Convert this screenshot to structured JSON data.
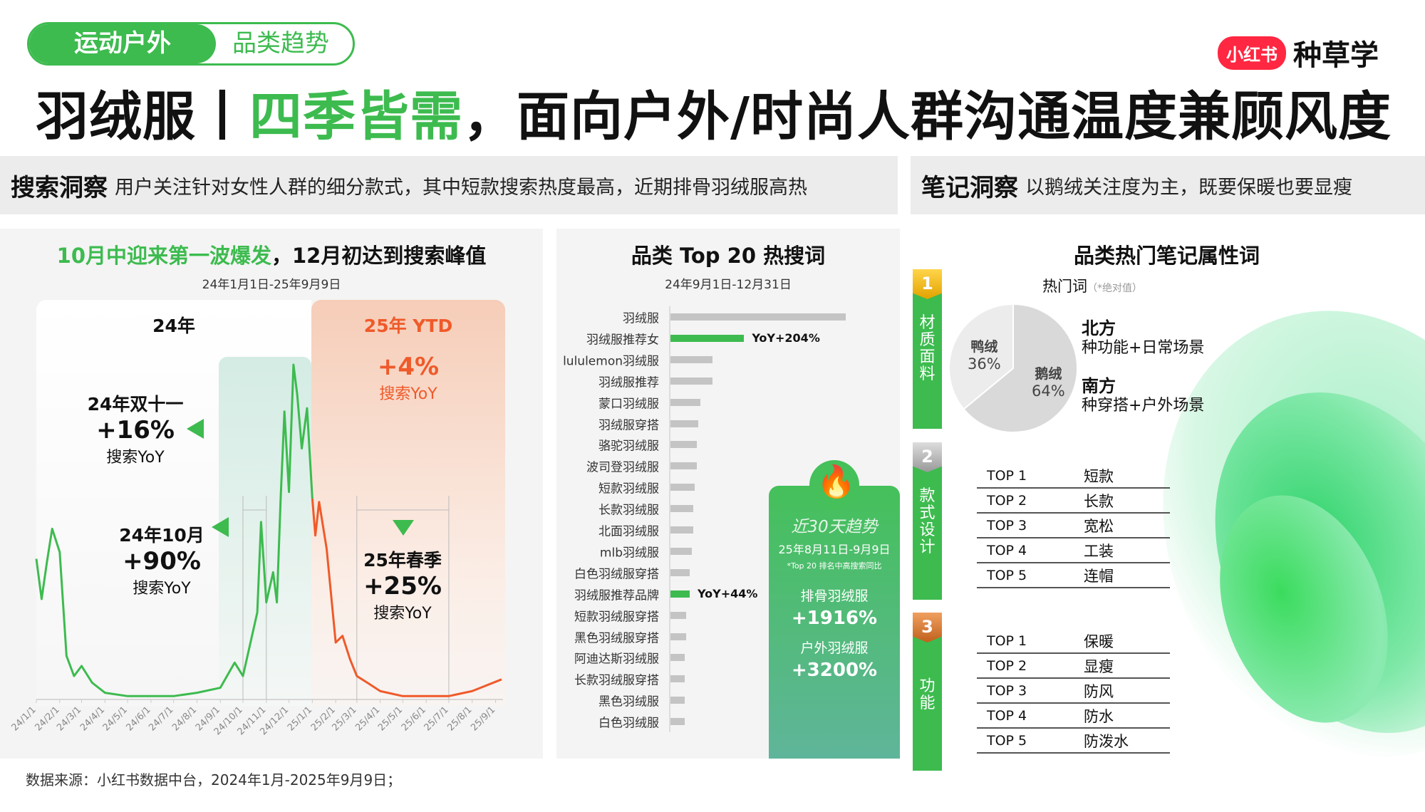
{
  "header": {
    "tag_primary": "运动户外",
    "tag_secondary": "品类趋势",
    "logo_badge": "小红书",
    "logo_text": "种草学",
    "title_black1": "羽绒服丨",
    "title_green": "四季皆需",
    "title_black2": "，面向户外/时尚人群沟通温度兼顾风度"
  },
  "search_insight": {
    "label": "搜索洞察",
    "text": "用户关注针对女性人群的细分款式，其中短款搜索热度最高，近期排骨羽绒服高热"
  },
  "note_insight": {
    "label": "笔记洞察",
    "text": "以鹅绒关注度为主，既要保暖也要显瘦"
  },
  "colors": {
    "green": "#3dbb4f",
    "orange": "#ef5a2a",
    "gray_bar": "#c4c4c4"
  },
  "chart_data": [
    {
      "type": "line",
      "title_green": "10月中迎来第一波爆发",
      "title_black": "，12月初达到搜索峰值",
      "subtitle": "24年1月1日-25年9月9日",
      "x_ticks": [
        "24/1/1",
        "24/2/1",
        "24/3/1",
        "24/4/1",
        "24/5/1",
        "24/6/1",
        "24/7/1",
        "24/8/1",
        "24/9/1",
        "24/10/1",
        "24/11/1",
        "24/12/1",
        "25/1/1",
        "25/2/1",
        "25/3/1",
        "25/4/1",
        "25/5/1",
        "25/6/1",
        "25/7/1",
        "25/8/1",
        "25/9/1"
      ],
      "x": [
        "2024-01-01",
        "2024-01-08",
        "2024-01-15",
        "2024-01-22",
        "2024-02-01",
        "2024-02-10",
        "2024-02-20",
        "2024-03-01",
        "2024-03-15",
        "2024-04-01",
        "2024-05-01",
        "2024-06-01",
        "2024-07-01",
        "2024-08-01",
        "2024-09-01",
        "2024-09-20",
        "2024-10-01",
        "2024-10-10",
        "2024-10-20",
        "2024-10-25",
        "2024-11-01",
        "2024-11-10",
        "2024-11-15",
        "2024-11-20",
        "2024-11-25",
        "2024-12-01",
        "2024-12-07",
        "2024-12-12",
        "2024-12-18",
        "2024-12-25",
        "2025-01-01",
        "2025-01-05",
        "2025-01-10",
        "2025-01-20",
        "2025-02-01",
        "2025-02-10",
        "2025-02-20",
        "2025-03-01",
        "2025-03-15",
        "2025-04-01",
        "2025-05-01",
        "2025-06-01",
        "2025-07-01",
        "2025-08-01",
        "2025-09-09"
      ],
      "y": [
        42,
        30,
        41,
        51,
        44,
        13,
        7,
        10,
        5,
        2,
        1,
        1,
        1,
        2,
        3.5,
        11,
        7,
        16,
        26,
        53,
        29,
        38,
        29,
        60,
        86,
        62,
        100,
        91,
        75,
        87,
        60,
        49,
        59,
        45,
        17,
        19,
        12,
        7,
        5,
        2.5,
        1,
        1,
        1,
        2.5,
        6
      ],
      "segments": [
        {
          "label": "24年"
        },
        {
          "label": "25年 YTD",
          "yoy": "+4%",
          "yoy_label": "搜索YoY"
        }
      ],
      "annotations": [
        {
          "title": "24年双十一",
          "value": "+16%",
          "label": "搜索YoY"
        },
        {
          "title": "24年10月",
          "value": "+90%",
          "label": "搜索YoY"
        },
        {
          "title": "25年春季",
          "value": "+25%",
          "label": "搜索YoY"
        }
      ]
    },
    {
      "type": "bar",
      "orientation": "horizontal",
      "title": "品类 Top 20 热搜词",
      "subtitle": "24年9月1日-12月31日",
      "categories": [
        "羽绒服",
        "羽绒服推荐女",
        "lululemon羽绒服",
        "羽绒服推荐",
        "蒙口羽绒服",
        "羽绒服穿搭",
        "骆驼羽绒服",
        "波司登羽绒服",
        "短款羽绒服",
        "长款羽绒服",
        "北面羽绒服",
        "mlb羽绒服",
        "白色羽绒服穿搭",
        "羽绒服推荐品牌",
        "短款羽绒服穿搭",
        "黑色羽绒服穿搭",
        "阿迪达斯羽绒服",
        "长款羽绒服穿搭",
        "黑色羽绒服",
        "白色羽绒服"
      ],
      "values": [
        100,
        42,
        24,
        24,
        17,
        16,
        15,
        15,
        14,
        13,
        13,
        12,
        11,
        11,
        9,
        9,
        8,
        8,
        8,
        8
      ],
      "highlight": {
        "1": "YoY+204%",
        "13": "YoY+44%"
      }
    },
    {
      "type": "pie",
      "title": "品类热门笔记属性词",
      "label": "热门词",
      "note": "（*绝对值）",
      "slices": [
        {
          "name": "鹅绒",
          "value": 64,
          "text": "64%"
        },
        {
          "name": "鸭绒",
          "value": 36,
          "text": "36%"
        }
      ]
    }
  ],
  "trend_card": {
    "title": "近30天趋势",
    "date": "25年8月11日-9月9日",
    "note": "*Top 20 排名中高搜索同比",
    "items": [
      {
        "name": "排骨羽绒服",
        "value": "+1916%"
      },
      {
        "name": "户外羽绒服",
        "value": "+3200%"
      }
    ]
  },
  "regions": [
    {
      "name": "北方",
      "text": "种功能+日常场景"
    },
    {
      "name": "南方",
      "text": "种穿搭+户外场景"
    }
  ],
  "categories": [
    {
      "num": "1",
      "label": "材质面料"
    },
    {
      "num": "2",
      "label": "款式设计"
    },
    {
      "num": "3",
      "label": "功能"
    }
  ],
  "style_top": [
    [
      "TOP 1",
      "短款"
    ],
    [
      "TOP 2",
      "长款"
    ],
    [
      "TOP 3",
      "宽松"
    ],
    [
      "TOP 4",
      "工装"
    ],
    [
      "TOP 5",
      "连帽"
    ]
  ],
  "function_top": [
    [
      "TOP 1",
      "保暖"
    ],
    [
      "TOP 2",
      "显瘦"
    ],
    [
      "TOP 3",
      "防风"
    ],
    [
      "TOP 4",
      "防水"
    ],
    [
      "TOP 5",
      "防泼水"
    ]
  ],
  "footer": "数据来源：小红书数据中台，2024年1月-2025年9月9日；"
}
